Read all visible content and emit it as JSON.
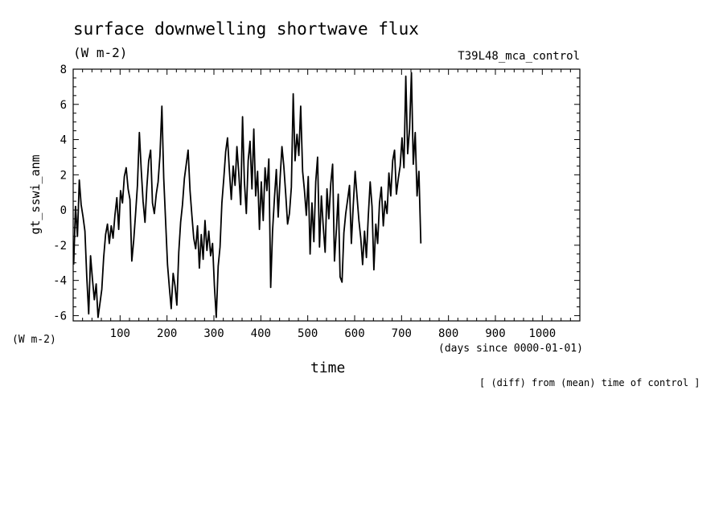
{
  "chart_data": {
    "type": "line",
    "title": "surface downwelling shortwave flux",
    "units": "(W m-2)",
    "run_label": "T39L48_mca_control",
    "ylabel": "gt_sswi_anm",
    "ylabel_units": "(W m-2)",
    "xlabel": "time",
    "xlabel_units": "(days since 0000-01-01)",
    "footnote": "[ (diff) from (mean) time of control ]",
    "xlim": [
      0,
      1080
    ],
    "ylim": [
      -6.3,
      8
    ],
    "x_ticks": [
      100,
      200,
      300,
      400,
      500,
      600,
      700,
      800,
      900,
      1000
    ],
    "y_ticks": [
      -6,
      -4,
      -2,
      0,
      2,
      4,
      6,
      8
    ],
    "grid": false,
    "series": [
      {
        "x_start": 1,
        "x_step": 4,
        "values": [
          -3.1,
          0.2,
          -1.5,
          1.7,
          0.3,
          -0.4,
          -1.2,
          -3.8,
          -5.9,
          -2.6,
          -3.9,
          -5.1,
          -4.2,
          -6.1,
          -5.3,
          -4.5,
          -2.7,
          -1.4,
          -0.8,
          -1.9,
          -0.9,
          -1.6,
          -0.3,
          0.7,
          -1.1,
          1.1,
          0.4,
          1.9,
          2.4,
          1.2,
          0.6,
          -2.9,
          -1.7,
          -0.2,
          1.4,
          4.4,
          2.3,
          0.5,
          -0.7,
          1.3,
          2.8,
          3.4,
          0.4,
          -0.2,
          0.9,
          1.6,
          3.1,
          5.9,
          1.8,
          -0.6,
          -3.1,
          -4.4,
          -5.6,
          -3.6,
          -4.3,
          -5.4,
          -2.4,
          -0.7,
          0.3,
          1.8,
          2.6,
          3.4,
          1.1,
          -0.3,
          -1.6,
          -2.2,
          -0.9,
          -3.3,
          -1.4,
          -2.8,
          -0.6,
          -2.3,
          -1.2,
          -2.6,
          -1.9,
          -4.3,
          -6.1,
          -3.2,
          -2.1,
          0.4,
          1.8,
          3.3,
          4.1,
          2.2,
          0.6,
          2.5,
          1.4,
          3.6,
          2.1,
          0.3,
          5.3,
          1.6,
          -0.2,
          2.8,
          3.9,
          1.2,
          4.6,
          0.8,
          2.2,
          -1.1,
          1.6,
          -0.6,
          2.4,
          1.1,
          2.9,
          -4.4,
          -1.2,
          0.7,
          2.3,
          -0.4,
          1.8,
          3.6,
          2.5,
          0.9,
          -0.8,
          -0.2,
          1.3,
          6.6,
          2.8,
          4.3,
          3.1,
          5.9,
          2.2,
          1.1,
          -0.3,
          1.9,
          -2.5,
          0.4,
          -1.8,
          1.6,
          3.0,
          -2.1,
          0.8,
          -0.9,
          -2.4,
          1.2,
          -0.5,
          1.5,
          2.6,
          -2.9,
          -1.1,
          0.9,
          -3.8,
          -4.1,
          -1.3,
          -0.2,
          0.6,
          1.4,
          -1.9,
          0.3,
          2.2,
          0.8,
          -0.6,
          -1.6,
          -3.1,
          -1.2,
          -2.7,
          -0.4,
          1.6,
          0.2,
          -3.4,
          -0.8,
          -1.9,
          0.4,
          1.3,
          -0.9,
          0.5,
          -0.2,
          2.1,
          0.8,
          2.8,
          3.4,
          0.9,
          1.8,
          2.5,
          4.1,
          2.4,
          7.6,
          3.2,
          4.6,
          7.8,
          2.6,
          4.4,
          0.8,
          2.2,
          -1.9
        ]
      }
    ]
  }
}
